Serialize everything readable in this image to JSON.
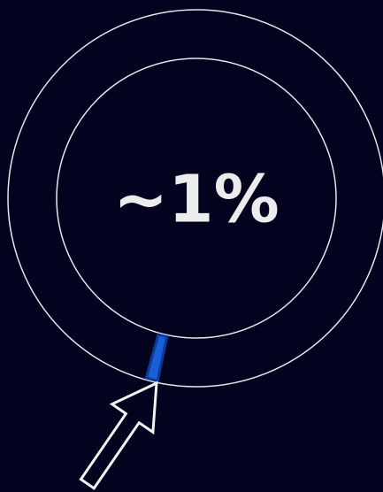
{
  "chart_data": {
    "type": "donut",
    "values": [
      1
    ],
    "value_labels": [
      "~1%"
    ],
    "color": "#1b5fd6"
  }
}
